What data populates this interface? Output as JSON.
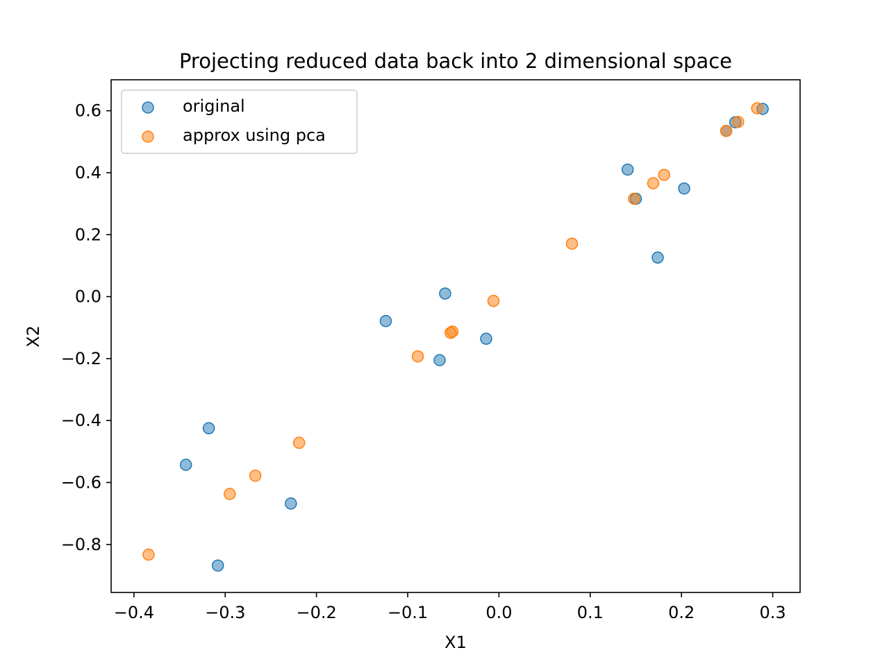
{
  "chart_data": {
    "type": "scatter",
    "title": "Projecting reduced data back into 2 dimensional space",
    "xlabel": "X1",
    "ylabel": "X2",
    "xlim": [
      -0.425,
      0.33
    ],
    "ylim": [
      -0.955,
      0.7
    ],
    "xticks": [
      -0.4,
      -0.3,
      -0.2,
      -0.1,
      0.0,
      0.1,
      0.2,
      0.3
    ],
    "xtick_labels": [
      "−0.4",
      "−0.3",
      "−0.2",
      "−0.1",
      "0.0",
      "0.1",
      "0.2",
      "0.3"
    ],
    "yticks": [
      -0.8,
      -0.6,
      -0.4,
      -0.2,
      0.0,
      0.2,
      0.4,
      0.6
    ],
    "ytick_labels": [
      "−0.8",
      "−0.6",
      "−0.4",
      "−0.2",
      "0.0",
      "0.2",
      "0.4",
      "0.6"
    ],
    "grid": false,
    "legend_position": "top-left",
    "series": [
      {
        "name": "original",
        "color": "#1f77b4",
        "points": [
          [
            0.289,
            0.606
          ],
          [
            0.259,
            0.563
          ],
          [
            0.249,
            0.535
          ],
          [
            0.141,
            0.41
          ],
          [
            0.15,
            0.316
          ],
          [
            0.203,
            0.349
          ],
          [
            0.174,
            0.126
          ],
          [
            -0.059,
            0.01
          ],
          [
            -0.124,
            -0.079
          ],
          [
            -0.014,
            -0.136
          ],
          [
            -0.065,
            -0.205
          ],
          [
            -0.318,
            -0.425
          ],
          [
            -0.343,
            -0.543
          ],
          [
            -0.228,
            -0.668
          ],
          [
            -0.308,
            -0.868
          ]
        ]
      },
      {
        "name": "approx using pca",
        "color": "#ff7f0e",
        "points": [
          [
            0.283,
            0.608
          ],
          [
            0.262,
            0.564
          ],
          [
            0.249,
            0.535
          ],
          [
            0.181,
            0.393
          ],
          [
            0.169,
            0.366
          ],
          [
            0.148,
            0.316
          ],
          [
            0.08,
            0.171
          ],
          [
            -0.006,
            -0.014
          ],
          [
            -0.051,
            -0.113
          ],
          [
            -0.053,
            -0.117
          ],
          [
            -0.089,
            -0.193
          ],
          [
            -0.219,
            -0.472
          ],
          [
            -0.267,
            -0.578
          ],
          [
            -0.295,
            -0.637
          ],
          [
            -0.384,
            -0.833
          ]
        ]
      }
    ]
  }
}
